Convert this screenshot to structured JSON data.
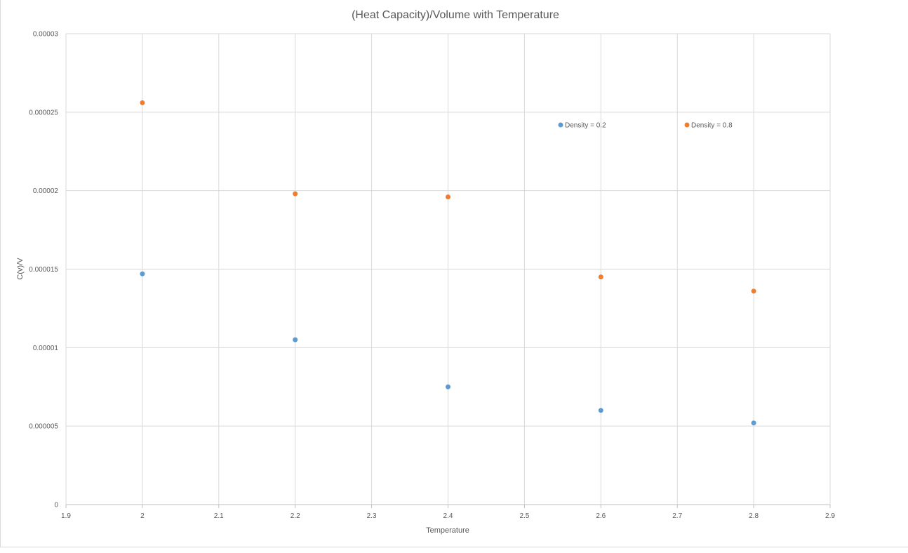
{
  "chart_data": {
    "type": "scatter",
    "title": "(Heat Capacity)/Volume with Temperature",
    "xlabel": "Temperature",
    "ylabel": "C(v)/V",
    "xlim": [
      1.9,
      2.9
    ],
    "ylim": [
      0,
      3e-05
    ],
    "x_ticks": [
      "1.9",
      "2",
      "2.1",
      "2.2",
      "2.3",
      "2.4",
      "2.5",
      "2.6",
      "2.7",
      "2.8",
      "2.9"
    ],
    "y_ticks": [
      "0",
      "0.000005",
      "0.00001",
      "0.000015",
      "0.00002",
      "0.000025",
      "0.00003"
    ],
    "grid": true,
    "legend_position": "top-right inside plot",
    "series": [
      {
        "name": "Density = 0.2",
        "color": "#5b9bd5",
        "x": [
          2.0,
          2.2,
          2.4,
          2.6,
          2.8
        ],
        "y": [
          1.47e-05,
          1.05e-05,
          7.5e-06,
          6e-06,
          5.2e-06
        ]
      },
      {
        "name": "Density = 0.8",
        "color": "#ed7d31",
        "x": [
          2.0,
          2.2,
          2.4,
          2.6,
          2.8
        ],
        "y": [
          2.56e-05,
          1.98e-05,
          1.96e-05,
          1.45e-05,
          1.36e-05
        ]
      }
    ]
  }
}
